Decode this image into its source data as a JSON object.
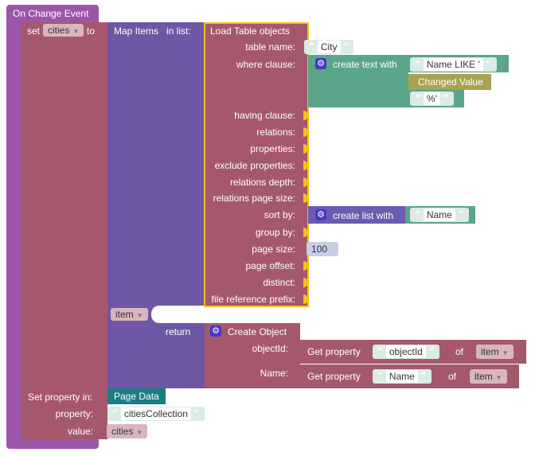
{
  "event": {
    "title": "On Change Event"
  },
  "set_var": {
    "label_set": "set",
    "var": "cities",
    "label_to": "to"
  },
  "map": {
    "label": "Map Items",
    "label_in": "in list:",
    "item_var": "item",
    "return_label": "return"
  },
  "load": {
    "title": "Load Table objects",
    "table_name_label": "table name:",
    "table_name_value": "City",
    "where_label": "where clause:",
    "having_label": "having clause:",
    "relations_label": "relations:",
    "properties_label": "properties:",
    "exclude_label": "exclude properties:",
    "relations_depth_label": "relations depth:",
    "relations_page_size_label": "relations page size:",
    "sort_label": "sort by:",
    "group_label": "group by:",
    "page_size_label": "page size:",
    "page_size_value": "100",
    "page_offset_label": "page offset:",
    "distinct_label": "distinct:",
    "file_ref_label": "file reference prefix:"
  },
  "create_text": {
    "label": "create text with",
    "item1": "Name LIKE '",
    "item2": "Changed Value",
    "item3": "%'"
  },
  "create_list": {
    "label": "create list with",
    "item1": "Name"
  },
  "create_object": {
    "label": "Create Object",
    "objectId_label": "objectId:",
    "name_label": "Name:",
    "get_property_label": "Get property",
    "objectId_prop": "objectId",
    "name_prop": "Name",
    "of_label": "of",
    "item_var": "item"
  },
  "set_property": {
    "label": "Set property in:",
    "target": "Page Data",
    "property_label": "property:",
    "property_value": "citiesCollection",
    "value_label": "value:",
    "value_var": "cities"
  },
  "colors": {
    "event": "#9c56a8",
    "variable": "#a5586c",
    "map": "#6f57a6",
    "load_border": "#f4c21a",
    "text": "#5ba58a",
    "list": "#6a5bb3",
    "changed_value": "#a9a351",
    "page_data": "#1c7d84"
  }
}
